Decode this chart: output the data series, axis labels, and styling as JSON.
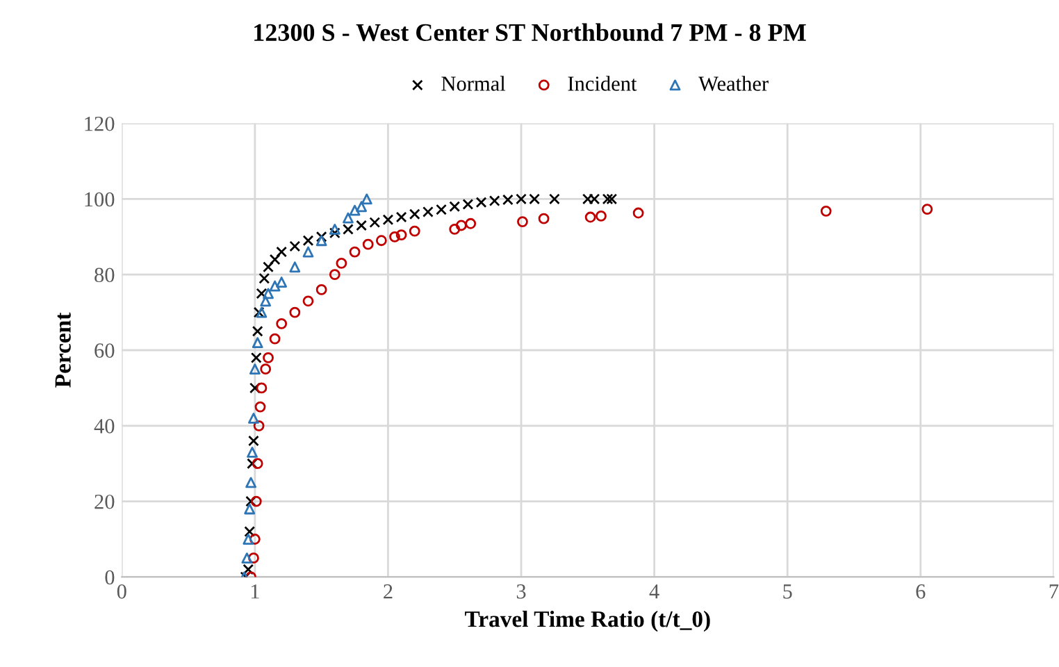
{
  "chart_data": {
    "type": "scatter",
    "title": "12300 S - West Center ST Northbound 7 PM - 8 PM",
    "xlabel": "Travel Time Ratio (t/t_0)",
    "ylabel": "Percent",
    "xlim": [
      0,
      7
    ],
    "xticks": [
      0,
      1,
      2,
      3,
      4,
      5,
      6,
      7
    ],
    "ylim": [
      0,
      120
    ],
    "yticks": [
      0,
      20,
      40,
      60,
      80,
      100,
      120
    ],
    "grid": true,
    "legend": "top",
    "series": [
      {
        "name": "Normal",
        "color": "#000000",
        "marker": "cross",
        "x": [
          0.93,
          0.95,
          0.96,
          0.97,
          0.98,
          0.99,
          1.0,
          1.01,
          1.02,
          1.03,
          1.05,
          1.07,
          1.1,
          1.15,
          1.2,
          1.3,
          1.4,
          1.5,
          1.6,
          1.7,
          1.8,
          1.9,
          2.0,
          2.1,
          2.2,
          2.3,
          2.4,
          2.5,
          2.6,
          2.7,
          2.8,
          2.9,
          3.0,
          3.1,
          3.25,
          3.5,
          3.55,
          3.65,
          3.68
        ],
        "values": [
          0,
          2,
          12,
          20,
          30,
          36,
          50,
          58,
          65,
          70,
          75,
          79,
          82,
          84,
          86,
          87.5,
          89,
          90,
          91,
          92,
          93,
          93.8,
          94.5,
          95.2,
          96,
          96.6,
          97.2,
          98,
          98.6,
          99.1,
          99.5,
          99.8,
          100,
          100,
          100,
          100,
          100,
          100,
          100
        ]
      },
      {
        "name": "Incident",
        "color": "#c00000",
        "marker": "circle",
        "x": [
          0.97,
          0.99,
          1.0,
          1.01,
          1.02,
          1.03,
          1.04,
          1.05,
          1.08,
          1.1,
          1.15,
          1.2,
          1.3,
          1.4,
          1.5,
          1.6,
          1.65,
          1.75,
          1.85,
          1.95,
          2.05,
          2.1,
          2.2,
          2.5,
          2.55,
          2.62,
          3.01,
          3.17,
          3.52,
          3.6,
          3.88,
          5.29,
          6.05
        ],
        "values": [
          0,
          5,
          10,
          20,
          30,
          40,
          45,
          50,
          55,
          58,
          63,
          67,
          70,
          73,
          76,
          80,
          83,
          86,
          88,
          89,
          90,
          90.5,
          91.5,
          92,
          93,
          93.5,
          94,
          94.8,
          95.2,
          95.5,
          96.3,
          96.8,
          97.3
        ]
      },
      {
        "name": "Weather",
        "color": "#2e75b6",
        "marker": "triangle",
        "x": [
          0.92,
          0.94,
          0.95,
          0.96,
          0.97,
          0.98,
          0.99,
          1.0,
          1.02,
          1.05,
          1.08,
          1.1,
          1.15,
          1.2,
          1.3,
          1.4,
          1.5,
          1.6,
          1.7,
          1.75,
          1.8,
          1.84
        ],
        "values": [
          0,
          5,
          10,
          18,
          25,
          33,
          42,
          55,
          62,
          70,
          73,
          75,
          77,
          78,
          82,
          86,
          89,
          92,
          95,
          97,
          98,
          100
        ]
      }
    ]
  }
}
